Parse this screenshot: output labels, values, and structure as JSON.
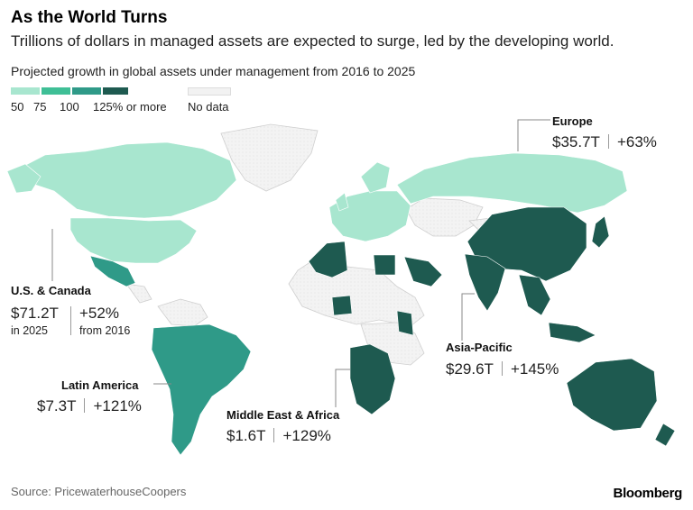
{
  "header": {
    "title": "As the World Turns",
    "subtitle": "Trillions of dollars in managed assets are expected to surge, led by the developing world.",
    "note": "Projected growth in global assets under management from 2016 to 2025"
  },
  "legend": {
    "items": [
      {
        "label": "50",
        "color": "#a8e6cf"
      },
      {
        "label": "75",
        "color": "#3fbf96"
      },
      {
        "label": "100",
        "color": "#2f9a88"
      },
      {
        "label": "125% or more",
        "color": "#1e5a50"
      }
    ],
    "no_data": {
      "label": "No data",
      "color": "#f2f2f2"
    }
  },
  "regions": {
    "europe": {
      "name": "Europe",
      "aum": "$35.7T",
      "growth": "+63%",
      "color": "#a8e6cf"
    },
    "us_canada": {
      "name": "U.S. & Canada",
      "aum": "$71.2T",
      "growth": "+52%",
      "aum_note": "in 2025",
      "growth_note": "from 2016",
      "color": "#a8e6cf"
    },
    "latin_america": {
      "name": "Latin America",
      "aum": "$7.3T",
      "growth": "+121%",
      "color": "#2f9a88"
    },
    "middle_east_africa": {
      "name": "Middle East & Africa",
      "aum": "$1.6T",
      "growth": "+129%",
      "color": "#1e5a50"
    },
    "asia_pacific": {
      "name": "Asia-Pacific",
      "aum": "$29.6T",
      "growth": "+145%",
      "color": "#1e5a50"
    }
  },
  "footer": {
    "source": "Source: PricewaterhouseCoopers",
    "brand": "Bloomberg"
  }
}
